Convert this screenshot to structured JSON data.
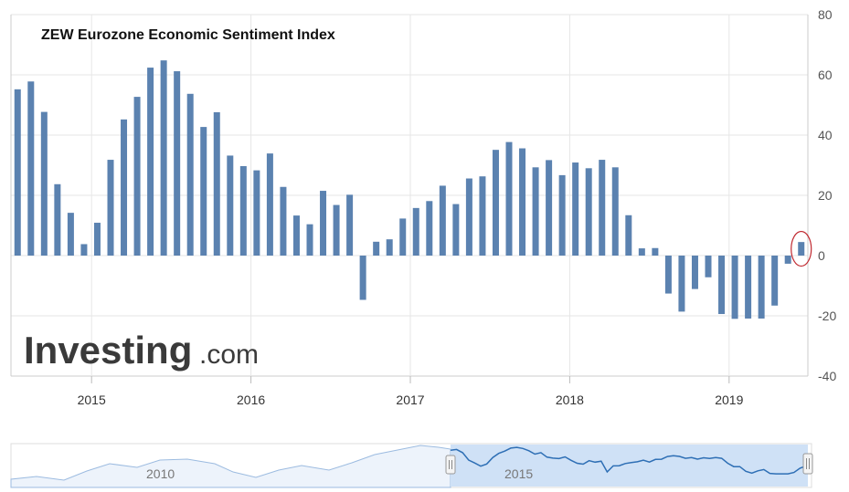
{
  "chart_data": {
    "type": "bar",
    "title": "ZEW Eurozone Economic Sentiment Index",
    "ylim": [
      -40,
      80
    ],
    "yticks": [
      "80",
      "60",
      "40",
      "20",
      "0",
      "-20",
      "-40"
    ],
    "xticks": [
      "2015",
      "2016",
      "2017",
      "2018",
      "2019"
    ],
    "grid": true,
    "series_color": "#5b82b0",
    "values": [
      55.2,
      57.8,
      47.7,
      23.7,
      14.2,
      3.8,
      10.9,
      31.8,
      45.2,
      52.7,
      62.4,
      64.8,
      61.2,
      53.7,
      42.7,
      47.6,
      33.2,
      29.7,
      28.3,
      33.9,
      22.8,
      13.3,
      10.4,
      21.5,
      16.8,
      20.2,
      -14.7,
      4.6,
      5.4,
      12.3,
      15.8,
      18.1,
      23.2,
      17.1,
      25.6,
      26.3,
      35.1,
      37.7,
      35.6,
      29.3,
      31.7,
      26.7,
      30.9,
      29.0,
      31.8,
      29.3,
      13.4,
      2.4,
      2.5,
      -12.6,
      -18.6,
      -11.1,
      -7.2,
      -19.4,
      -21.0,
      -20.9,
      -20.9,
      -16.6,
      -2.7,
      4.5
    ],
    "highlight_last": true,
    "navigator": {
      "labels": [
        "2010",
        "2015"
      ]
    }
  },
  "watermark": {
    "brand": "Investing",
    "suffix": ".com"
  },
  "colors": {
    "bar": "#5b82b0",
    "highlight_ring": "#c0282f",
    "navigator_line": "#2e6fb5",
    "navigator_fill": "#cfe1f6",
    "grid": "#e6e6e6"
  }
}
